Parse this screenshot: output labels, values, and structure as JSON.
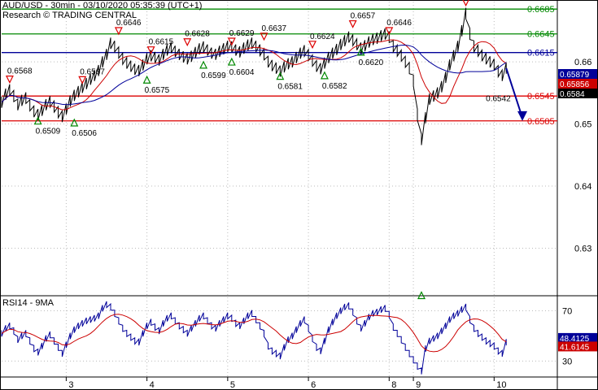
{
  "header": {
    "title": "AUD/USD - 30min - 03/10/2020 05:35:39 (UTC+1)",
    "subtitle": "Research © TRADING CENTRAL"
  },
  "rsi_header": {
    "label": "RSI14 - 9MA"
  },
  "chart_data": [
    {
      "type": "line",
      "title": "AUD/USD - 30min - 03/10/2020 05:35:39 (UTC+1)",
      "subtitle": "Research © TRADING CENTRAL",
      "ylim": [
        0.6226,
        0.6697
      ],
      "yticks": [
        0.63,
        0.64,
        0.65,
        0.66
      ],
      "ytick_labels": [
        "0.63",
        "0.64",
        "0.65",
        "0.66"
      ],
      "xlim": [
        0,
        125
      ],
      "xticks": [
        {
          "x": 16,
          "label": "3"
        },
        {
          "x": 36,
          "label": "4"
        },
        {
          "x": 56,
          "label": "5"
        },
        {
          "x": 76,
          "label": "6"
        },
        {
          "x": 96,
          "label": "8"
        },
        {
          "x": 102,
          "label": "9"
        },
        {
          "x": 122,
          "label": "10"
        }
      ],
      "grid": true,
      "colors": {
        "price": "#000000",
        "ma_red": "#cc0000",
        "ma_blue": "#000099",
        "support": "#dd0000",
        "resistance": "#008800",
        "pivot": "#000099"
      },
      "close": [
        0.6535,
        0.6548,
        0.6555,
        0.6545,
        0.6531,
        0.6538,
        0.6542,
        0.653,
        0.652,
        0.6515,
        0.6522,
        0.6531,
        0.6536,
        0.6528,
        0.6519,
        0.6512,
        0.6524,
        0.6537,
        0.6546,
        0.6552,
        0.6559,
        0.6565,
        0.6572,
        0.6578,
        0.6586,
        0.66,
        0.6612,
        0.663,
        0.6625,
        0.6615,
        0.6605,
        0.6598,
        0.6593,
        0.6588,
        0.6586,
        0.6595,
        0.6605,
        0.661,
        0.6607,
        0.6603,
        0.6612,
        0.6619,
        0.6623,
        0.6617,
        0.6612,
        0.6608,
        0.6605,
        0.6609,
        0.6615,
        0.6621,
        0.6624,
        0.6619,
        0.6614,
        0.6612,
        0.6617,
        0.6621,
        0.6625,
        0.6624,
        0.6619,
        0.6616,
        0.6622,
        0.6627,
        0.663,
        0.6625,
        0.6619,
        0.6612,
        0.66,
        0.6594,
        0.659,
        0.6585,
        0.6592,
        0.6597,
        0.66,
        0.6607,
        0.6614,
        0.6618,
        0.6611,
        0.6602,
        0.6593,
        0.6589,
        0.6598,
        0.6607,
        0.6614,
        0.662,
        0.6628,
        0.6634,
        0.664,
        0.6635,
        0.6628,
        0.6622,
        0.6626,
        0.6632,
        0.6636,
        0.6638,
        0.6642,
        0.6645,
        0.664,
        0.6625,
        0.6618,
        0.661,
        0.66,
        0.659,
        0.657,
        0.6515,
        0.6475,
        0.651,
        0.654,
        0.6545,
        0.655,
        0.656,
        0.6575,
        0.6595,
        0.661,
        0.6625,
        0.665,
        0.6678,
        0.6645,
        0.6625,
        0.6618,
        0.661,
        0.6605,
        0.66,
        0.6596,
        0.6585,
        0.6578,
        0.659
      ],
      "series": [],
      "levels": [
        {
          "value": 0.6685,
          "label": "0.6685",
          "kind": "resistance"
        },
        {
          "value": 0.6645,
          "label": "0.6645",
          "kind": "resistance"
        },
        {
          "value": 0.6615,
          "label": "0.6615",
          "kind": "pivot"
        },
        {
          "value": 0.6545,
          "label": "0.6545",
          "kind": "support"
        },
        {
          "value": 0.6505,
          "label": "0.6505",
          "kind": "support"
        }
      ],
      "right_badges": [
        {
          "value": 0.6588,
          "label": "0.65879",
          "bg": "#000099"
        },
        {
          "value": 0.6586,
          "label": "0.65856",
          "bg": "#cc0000"
        },
        {
          "value": 0.6584,
          "label": "0.6584",
          "bg": "#000000"
        }
      ],
      "projection": {
        "from": [
          125,
          0.659
        ],
        "to": [
          129,
          0.651
        ]
      },
      "annotations": [
        {
          "x": 2,
          "value": 0.6568,
          "label": "0.6568",
          "marker": "down"
        },
        {
          "x": 9,
          "value": 0.6509,
          "label": "0.6509",
          "marker": "up"
        },
        {
          "x": 18,
          "value": 0.6506,
          "label": "0.6506",
          "marker": "up"
        },
        {
          "x": 20,
          "value": 0.6567,
          "label": "0.6567",
          "marker": "down"
        },
        {
          "x": 29,
          "value": 0.6646,
          "label": "0.6646",
          "marker": "down"
        },
        {
          "x": 36,
          "value": 0.6575,
          "label": "0.6575",
          "marker": "up"
        },
        {
          "x": 37,
          "value": 0.6615,
          "label": "0.6615",
          "marker": "down"
        },
        {
          "x": 50,
          "value": 0.6599,
          "label": "0.6599",
          "marker": "up"
        },
        {
          "x": 46,
          "value": 0.6628,
          "label": "0.6628",
          "marker": "down"
        },
        {
          "x": 57,
          "value": 0.6629,
          "label": "0.6629",
          "marker": "down"
        },
        {
          "x": 57,
          "value": 0.6604,
          "label": "0.6604",
          "marker": "up"
        },
        {
          "x": 65,
          "value": 0.6637,
          "label": "0.6637",
          "marker": "down"
        },
        {
          "x": 69,
          "value": 0.6581,
          "label": "0.6581",
          "marker": "up"
        },
        {
          "x": 77,
          "value": 0.6624,
          "label": "0.6624",
          "marker": "down"
        },
        {
          "x": 80,
          "value": 0.6582,
          "label": "0.6582",
          "marker": "up"
        },
        {
          "x": 87,
          "value": 0.6657,
          "label": "0.6657",
          "marker": "down"
        },
        {
          "x": 89,
          "value": 0.662,
          "label": "0.6620",
          "marker": "up"
        },
        {
          "x": 96,
          "value": 0.6646,
          "label": "0.6646",
          "marker": "down"
        },
        {
          "x": 104,
          "value": 0.6228,
          "label": "",
          "marker": "up"
        },
        {
          "x": 115,
          "value": 0.6692,
          "label": "",
          "marker": "down"
        },
        {
          "x": 126,
          "value": 0.6542,
          "label": "0.6542",
          "marker": "none"
        }
      ]
    },
    {
      "type": "line",
      "title": "RSI14 - 9MA",
      "ylim": [
        18,
        80
      ],
      "yticks": [
        30,
        70
      ],
      "ytick_labels": [
        "30",
        "70"
      ],
      "rsi": [
        52,
        56,
        58,
        54,
        47,
        50,
        52,
        46,
        40,
        37,
        42,
        48,
        51,
        46,
        41,
        36,
        43,
        50,
        55,
        58,
        60,
        62,
        63,
        64,
        66,
        72,
        75,
        73,
        68,
        62,
        56,
        52,
        49,
        46,
        45,
        52,
        58,
        61,
        57,
        54,
        60,
        64,
        66,
        62,
        58,
        55,
        52,
        56,
        60,
        64,
        66,
        62,
        58,
        56,
        60,
        63,
        66,
        64,
        60,
        58,
        62,
        66,
        68,
        63,
        58,
        52,
        42,
        38,
        36,
        34,
        41,
        47,
        50,
        55,
        60,
        63,
        56,
        48,
        41,
        38,
        46,
        55,
        61,
        66,
        70,
        73,
        74,
        69,
        62,
        56,
        60,
        65,
        68,
        69,
        71,
        72,
        67,
        57,
        52,
        47,
        41,
        36,
        31,
        26,
        22,
        40,
        46,
        48,
        50,
        54,
        58,
        63,
        66,
        68,
        71,
        73,
        63,
        56,
        52,
        49,
        46,
        44,
        42,
        38,
        36,
        45
      ],
      "badges": [
        {
          "value": 48.4125,
          "label": "48.4125",
          "bg": "#000099"
        },
        {
          "value": 41.6145,
          "label": "41.6145",
          "bg": "#cc0000"
        }
      ]
    }
  ]
}
